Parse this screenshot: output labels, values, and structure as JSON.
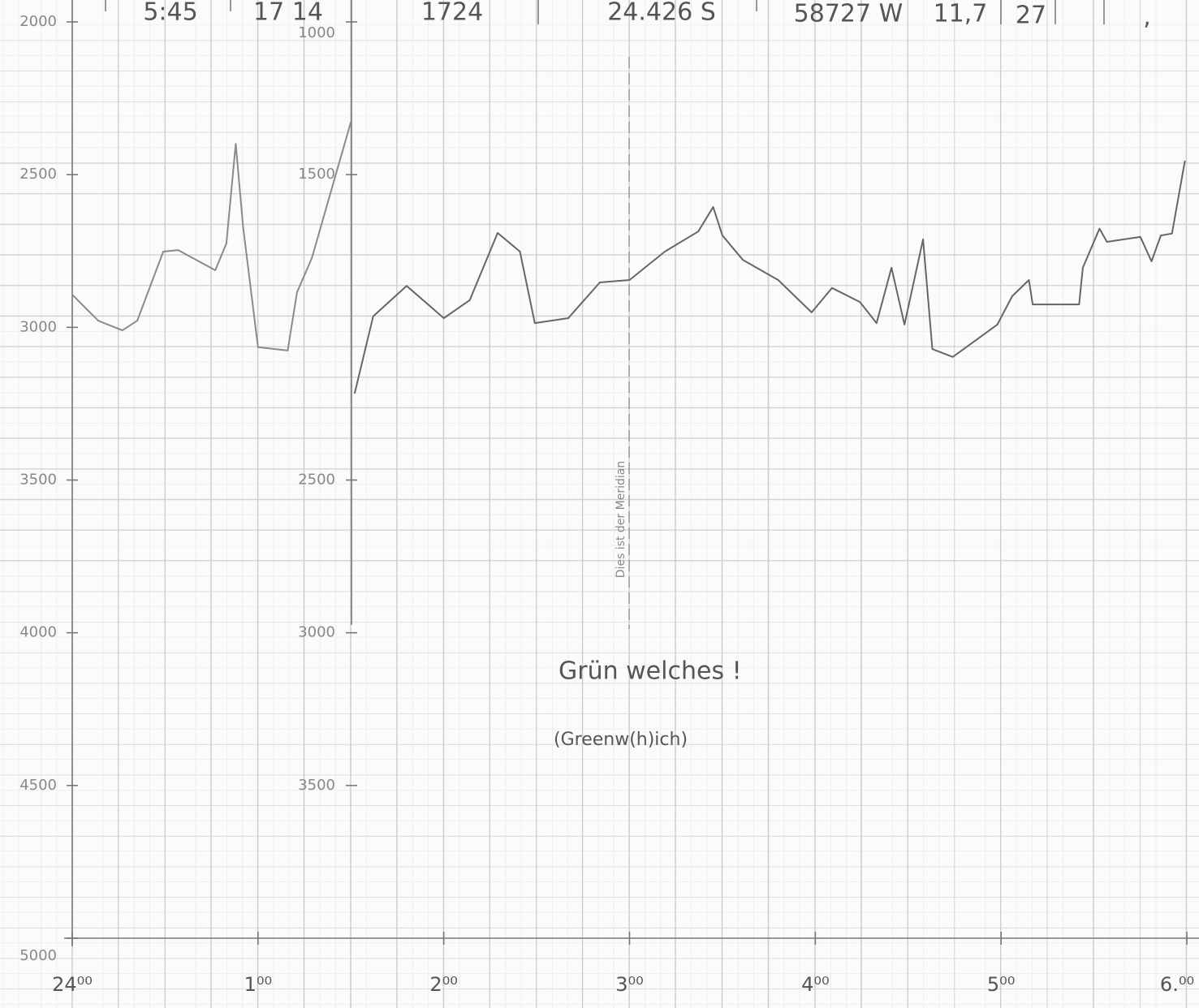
{
  "chart_data": {
    "type": "line",
    "header_notes": [
      "5:45",
      "17 14",
      "1724",
      "24.426 S",
      "58727 W",
      "11,7",
      "27",
      ","
    ],
    "annotations": [
      "Dies ist der Meridian",
      "Grün welches !",
      "(Greenw(h)ich)"
    ],
    "xlim": [
      0,
      6
    ],
    "xticks": [
      {
        "value": 0,
        "label": "24⁰⁰"
      },
      {
        "value": 1,
        "label": "1⁰⁰"
      },
      {
        "value": 2,
        "label": "2⁰⁰"
      },
      {
        "value": 3,
        "label": "3⁰⁰"
      },
      {
        "value": 4,
        "label": "4⁰⁰"
      },
      {
        "value": 5,
        "label": "5⁰⁰"
      },
      {
        "value": 6,
        "label": "6.⁰⁰"
      }
    ],
    "ylim": [
      2000,
      5000
    ],
    "yticks": [
      2000,
      2500,
      3000,
      3500,
      4000,
      4500,
      5000
    ],
    "y2lim": [
      1000,
      4000
    ],
    "y2ticks": [
      1000,
      1500,
      2500,
      3000,
      3500
    ],
    "y_inverted": true,
    "grid": true,
    "series": [
      {
        "axis": "y",
        "color": "#8a8a8a",
        "x": [
          0,
          0.14,
          0.27,
          0.35,
          0.49,
          0.57,
          0.77,
          0.83,
          0.88,
          0.92,
          1.0,
          1.16,
          1.21,
          1.29,
          1.4,
          1.5
        ],
        "values": [
          2893,
          2978,
          3010,
          2978,
          2752,
          2747,
          2813,
          2725,
          2399,
          2672,
          3065,
          3076,
          2885,
          2773,
          2539,
          2327
        ]
      },
      {
        "axis": "y2",
        "color": "#666666",
        "x": [
          1.52,
          1.62,
          1.8,
          2.0,
          2.14,
          2.29,
          2.41,
          2.49,
          2.67,
          2.84,
          3.0,
          3.19,
          3.37,
          3.45,
          3.5,
          3.61,
          3.8,
          3.98,
          4.09,
          4.24,
          4.33,
          4.41,
          4.48,
          4.58,
          4.63,
          4.74,
          4.98,
          5.06,
          5.15,
          5.17,
          5.42,
          5.44,
          5.53,
          5.57,
          5.75,
          5.81,
          5.86,
          5.92,
          5.99
        ],
        "values": [
          2217,
          1964,
          1864,
          1970,
          1911,
          1691,
          1752,
          1986,
          1970,
          1853,
          1845,
          1752,
          1686,
          1606,
          1699,
          1779,
          1845,
          1951,
          1871,
          1917,
          1986,
          1805,
          1991,
          1712,
          2071,
          2097,
          1991,
          1898,
          1845,
          1925,
          1925,
          1805,
          1677,
          1720,
          1704,
          1784,
          1699,
          1693,
          1454
        ]
      }
    ]
  }
}
